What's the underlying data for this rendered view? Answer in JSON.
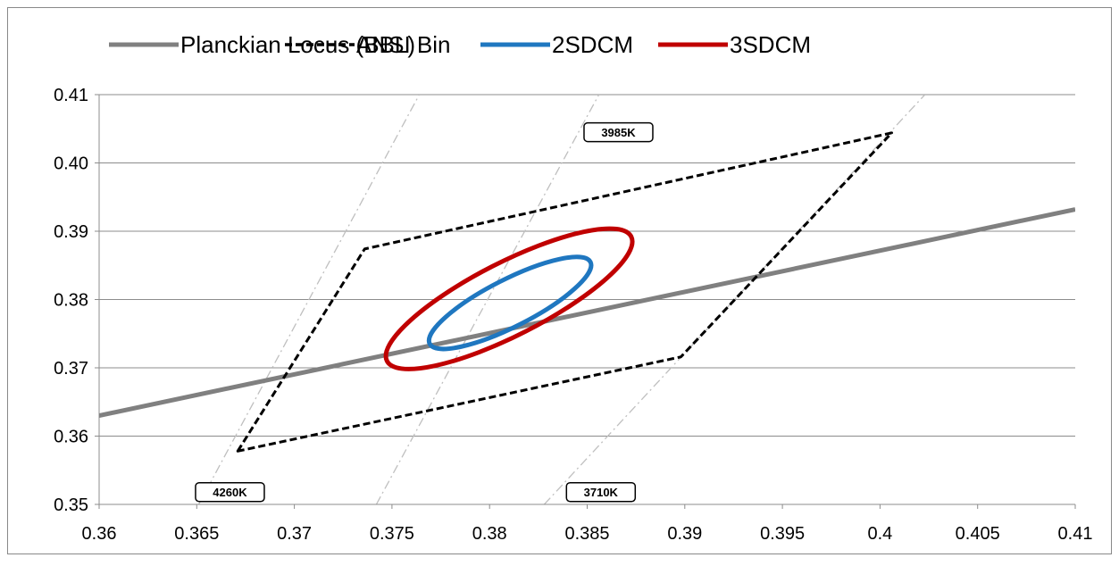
{
  "chart_data": {
    "type": "scatter",
    "title": "",
    "xlabel": "",
    "ylabel": "",
    "xlim": [
      0.36,
      0.41
    ],
    "ylim": [
      0.35,
      0.41
    ],
    "x_ticks": [
      0.36,
      0.365,
      0.37,
      0.375,
      0.38,
      0.385,
      0.39,
      0.395,
      0.4,
      0.405,
      0.41
    ],
    "x_tick_labels": [
      "0.36",
      "0.365",
      "0.37",
      "0.375",
      "0.38",
      "0.385",
      "0.39",
      "0.395",
      "0.4",
      "0.405",
      "0.41"
    ],
    "y_ticks": [
      0.35,
      0.36,
      0.37,
      0.38,
      0.39,
      0.4,
      0.41
    ],
    "y_tick_labels": [
      "0.35",
      "0.36",
      "0.37",
      "0.38",
      "0.39",
      "0.40",
      "0.41"
    ],
    "grid": "horizontal",
    "legend_position": "top",
    "legend": [
      {
        "label": "Planckian Locus (BBL)",
        "color": "#808080",
        "style": "solid"
      },
      {
        "label": "ANSI Bin",
        "color": "#000000",
        "style": "dashed"
      },
      {
        "label": "2SDCM",
        "color": "#1F77C0",
        "style": "solid"
      },
      {
        "label": "3SDCM",
        "color": "#C00000",
        "style": "solid"
      }
    ],
    "series": [
      {
        "name": "Planckian Locus (BBL)",
        "color": "#808080",
        "style": "solid",
        "points": [
          [
            0.36,
            0.363
          ],
          [
            0.41,
            0.3932
          ]
        ]
      },
      {
        "name": "ANSI Bin",
        "color": "#000000",
        "style": "dashed",
        "closed": true,
        "points": [
          [
            0.3671,
            0.3578
          ],
          [
            0.3736,
            0.3874
          ],
          [
            0.4006,
            0.4044
          ],
          [
            0.3898,
            0.3716
          ]
        ]
      },
      {
        "name": "2SDCM",
        "color": "#1F77C0",
        "style": "solid",
        "ellipse": {
          "cx": 0.38105,
          "cy": 0.3795,
          "rx": 0.00462,
          "ry": 0.00345,
          "rotation_deg": 27
        }
      },
      {
        "name": "3SDCM",
        "color": "#C00000",
        "style": "solid",
        "ellipse": {
          "cx": 0.381,
          "cy": 0.3801,
          "rx": 0.00702,
          "ry": 0.00535,
          "rotation_deg": 27
        }
      }
    ],
    "isotherms": [
      {
        "points": [
          [
            0.3651,
            0.35
          ],
          [
            0.3764,
            0.41
          ]
        ],
        "color": "#BFBFBF"
      },
      {
        "points": [
          [
            0.3742,
            0.35
          ],
          [
            0.3856,
            0.41
          ]
        ],
        "color": "#BFBFBF"
      },
      {
        "points": [
          [
            0.3828,
            0.35
          ],
          [
            0.4023,
            0.41
          ]
        ],
        "color": "#BFBFBF"
      }
    ],
    "annotations": [
      {
        "text": "3985K",
        "x": 0.3866,
        "y": 0.4045
      },
      {
        "text": "4260K",
        "x": 0.3667,
        "y": 0.3518
      },
      {
        "text": "3710K",
        "x": 0.3857,
        "y": 0.3518
      }
    ]
  }
}
